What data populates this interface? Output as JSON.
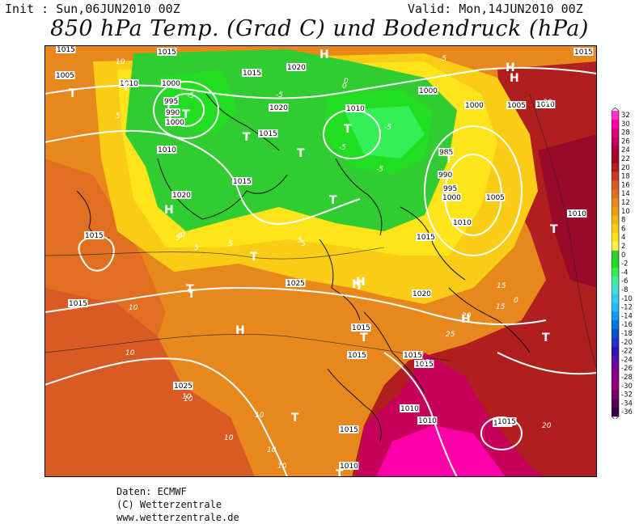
{
  "header": {
    "init": "Init : Sun,06JUN2010 00Z",
    "valid": "Valid: Mon,14JUN2010 00Z",
    "title": "850 hPa Temp. (Grad C) und Bodendruck (hPa)"
  },
  "legend": {
    "values": [
      "32",
      "30",
      "28",
      "26",
      "24",
      "22",
      "20",
      "18",
      "16",
      "14",
      "12",
      "10",
      "8",
      "6",
      "4",
      "2",
      "0",
      "-2",
      "-4",
      "-6",
      "-8",
      "-10",
      "-12",
      "-14",
      "-16",
      "-18",
      "-20",
      "-22",
      "-24",
      "-26",
      "-28",
      "-30",
      "-32",
      "-34",
      "-36"
    ],
    "colors": [
      "#ff33cc",
      "#ff00aa",
      "#e0007a",
      "#c4005a",
      "#a8003c",
      "#9a0a28",
      "#b01e1e",
      "#c83c23",
      "#d85a24",
      "#e0701f",
      "#e8881c",
      "#ec9a18",
      "#f3b417",
      "#f9cd16",
      "#ffe41b",
      "#f8f24a",
      "#31cc31",
      "#22dd22",
      "#33ee55",
      "#44ee99",
      "#44ddcc",
      "#33ccee",
      "#22bbff",
      "#1199ee",
      "#0077dd",
      "#0055cc",
      "#2233cc",
      "#3311bb",
      "#5511aa",
      "#770099",
      "#880088",
      "#990077",
      "#770066",
      "#550055",
      "#330044"
    ]
  },
  "map": {
    "isobar_labels": [
      "1015",
      "1005",
      "1010",
      "1000",
      "995",
      "990",
      "1000",
      "1015",
      "1020",
      "1015",
      "1015",
      "1010",
      "1020",
      "1010",
      "1015",
      "1020",
      "1015",
      "1000",
      "1005",
      "1010",
      "1000",
      "985",
      "990",
      "995",
      "1000",
      "1005",
      "1010",
      "1010",
      "1015",
      "1025",
      "1015",
      "1020",
      "1015",
      "1015",
      "1015",
      "1015",
      "1025",
      "1015",
      "1010",
      "1015",
      "1010",
      "1010",
      "1015",
      "1015"
    ],
    "temp_labels": [
      "10",
      "5",
      "5",
      "0",
      "5",
      "0",
      "-5",
      "-5",
      "-5",
      "-5",
      "-5",
      "-5",
      "0",
      "10",
      "5",
      "10",
      "15",
      "15",
      "20",
      "25",
      "25",
      "20",
      "10",
      "10",
      "10",
      "10",
      "10",
      "10",
      "5",
      "5",
      "0",
      "0",
      "20"
    ],
    "pressure_centers": [
      "H",
      "H",
      "T",
      "T",
      "T",
      "T",
      "T",
      "T",
      "T",
      "T",
      "H",
      "T",
      "H",
      "T",
      "T",
      "H",
      "T",
      "H",
      "T",
      "T",
      "T",
      "H",
      "H",
      "T",
      "T"
    ]
  },
  "credits": {
    "line1": "Daten: ECMWF",
    "line2": "(C) Wetterzentrale",
    "line3": "www.wetterzentrale.de"
  }
}
